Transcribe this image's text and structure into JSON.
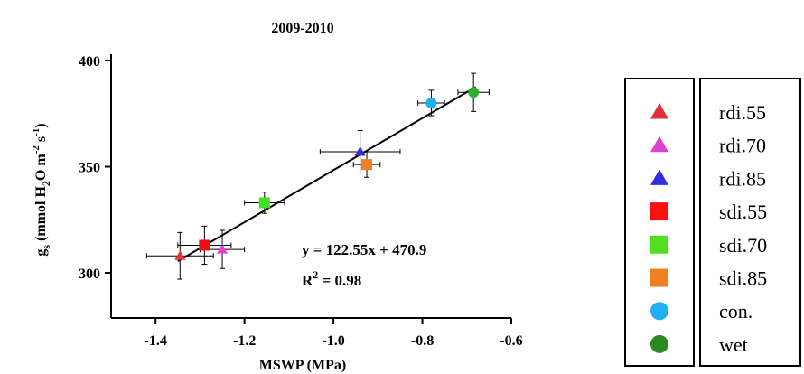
{
  "chart_data": {
    "type": "scatter",
    "title": "2009-2010",
    "xlabel": "MSWP (MPa)",
    "ylabel": {
      "main": "g",
      "sub": "s",
      "units": "(mmol H",
      "units_sub": "2",
      "units_rest": "O m",
      "sup1": "-2",
      "mid": " s",
      "sup2": "-1",
      "end": ")"
    },
    "xlim": [
      -1.5,
      -0.6
    ],
    "ylim": [
      285,
      400
    ],
    "xticks": [
      -1.4,
      -1.2,
      -1.0,
      -0.8,
      -0.6
    ],
    "xtick_labels": [
      "-1.4",
      "-1.2",
      "-1.0",
      "-0.8",
      "-0.6"
    ],
    "yticks": [
      300,
      350,
      400
    ],
    "ytick_labels": [
      "300",
      "350",
      "400"
    ],
    "grid": false,
    "legend_position": "right",
    "equation": "y = 122.55x + 470.9",
    "r2_label": "R",
    "r2_sup": "2",
    "r2_value": " = 0.98",
    "fit": {
      "slope": 122.55,
      "intercept": 470.9,
      "x_range": [
        -1.35,
        -0.68
      ]
    },
    "series": [
      {
        "name": "rdi.55",
        "marker": "triangle",
        "color": "#e8303a",
        "x": -1.345,
        "y": 308,
        "xerr": 0.075,
        "yerr": 11
      },
      {
        "name": "rdi.70",
        "marker": "triangle",
        "color": "#e040d8",
        "x": -1.25,
        "y": 311,
        "xerr": 0.05,
        "yerr": 9
      },
      {
        "name": "rdi.85",
        "marker": "triangle",
        "color": "#3030e0",
        "x": -0.94,
        "y": 357,
        "xerr": 0.09,
        "yerr": 10
      },
      {
        "name": "sdi.55",
        "marker": "square",
        "color": "#ee1010",
        "x": -1.29,
        "y": 313,
        "xerr": 0.06,
        "yerr": 9
      },
      {
        "name": "sdi.70",
        "marker": "square",
        "color": "#40e020",
        "x": -1.155,
        "y": 333,
        "xerr": 0.045,
        "yerr": 5
      },
      {
        "name": "sdi.85",
        "marker": "square",
        "color": "#f08020",
        "x": -0.925,
        "y": 351,
        "xerr": 0.03,
        "yerr": 6
      },
      {
        "name": "con.",
        "marker": "circle",
        "color": "#20b0f0",
        "x": -0.78,
        "y": 380,
        "xerr": 0.03,
        "yerr": 6
      },
      {
        "name": "wet",
        "marker": "circle",
        "color": "#30b030",
        "x": -0.685,
        "y": 385,
        "xerr": 0.035,
        "yerr": 9
      }
    ],
    "legend_marker_colors": {
      "rdi.55": "#e0303c",
      "rdi.70": "#e040d0",
      "rdi.85": "#3030e0",
      "sdi.55": "#ff1010",
      "sdi.70": "#50e020",
      "sdi.85": "#f08020",
      "con.": "#20b0f0",
      "wet": "#2a8a20"
    }
  }
}
